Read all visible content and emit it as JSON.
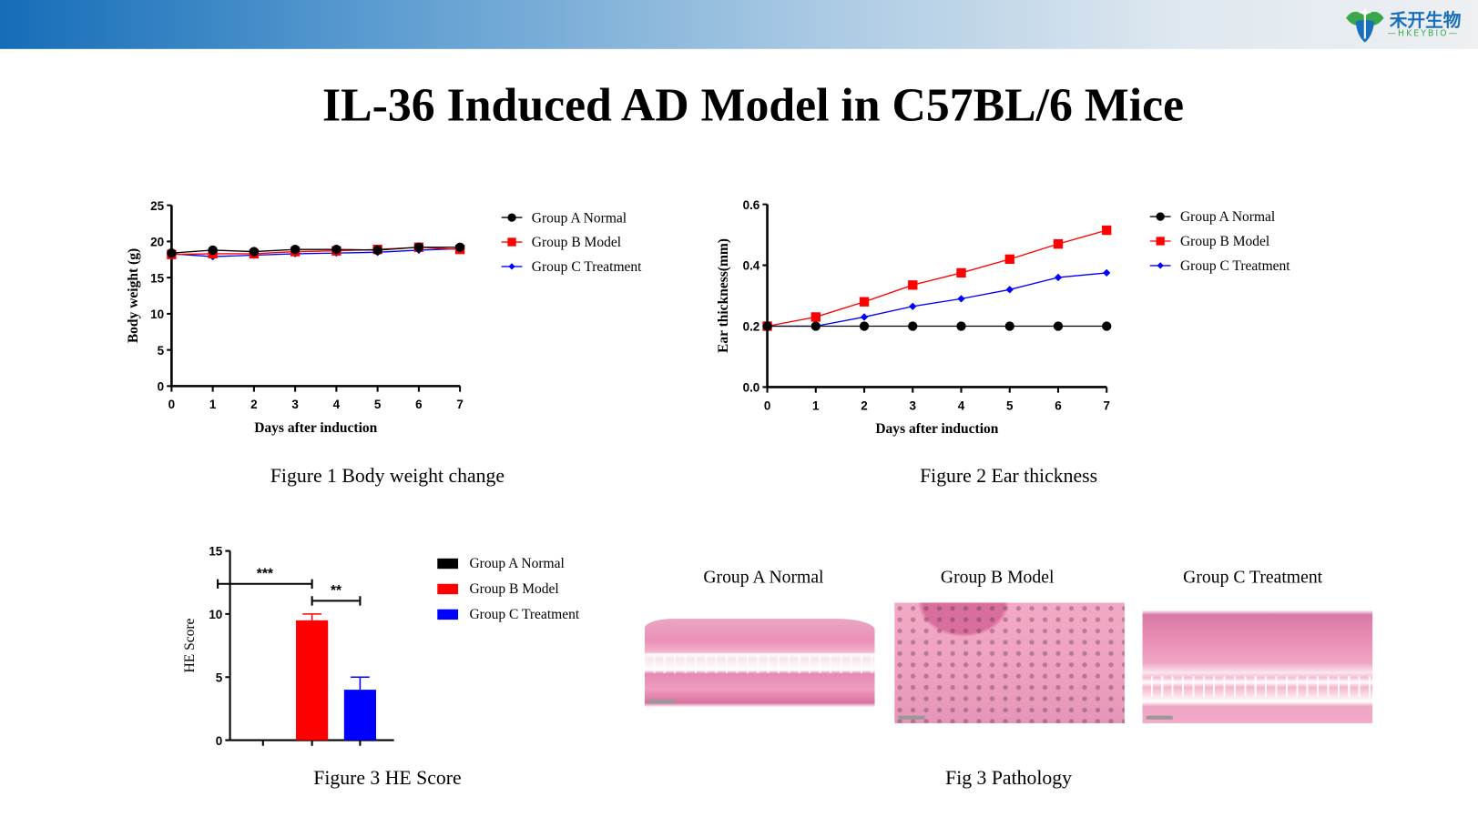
{
  "header": {
    "logo_cn": "禾开生物",
    "logo_en": "—HKEYBIO—",
    "brand_colors": {
      "blue": "#1a6fba",
      "green": "#3aa84a"
    }
  },
  "title": "IL-36 Induced AD Model in C57BL/6 Mice",
  "colors": {
    "group_a": "#000000",
    "group_b": "#ff0000",
    "group_c": "#0000ff"
  },
  "chart_data": [
    {
      "type": "line",
      "caption": "Figure 1 Body weight change",
      "xlabel": "Days after induction",
      "ylabel": "Body weight (g)",
      "x": [
        0,
        1,
        2,
        3,
        4,
        5,
        6,
        7
      ],
      "xlim": [
        0,
        7
      ],
      "ylim": [
        0,
        25
      ],
      "yticks": [
        0,
        5,
        10,
        15,
        20,
        25
      ],
      "legend": "right",
      "series": [
        {
          "name": "Group A Normal",
          "marker": "circle",
          "values": [
            18.4,
            18.8,
            18.6,
            18.9,
            18.9,
            18.8,
            19.2,
            19.2
          ]
        },
        {
          "name": "Group B Model",
          "marker": "square",
          "values": [
            18.2,
            18.3,
            18.3,
            18.6,
            18.7,
            18.9,
            19.2,
            18.9
          ]
        },
        {
          "name": "Group C Treatment",
          "marker": "diamond",
          "values": [
            18.3,
            17.9,
            18.1,
            18.3,
            18.4,
            18.5,
            18.8,
            19.0
          ]
        }
      ]
    },
    {
      "type": "line",
      "caption": "Figure 2 Ear thickness",
      "xlabel": "Days after induction",
      "ylabel": "Ear thickness(mm)",
      "x": [
        0,
        1,
        2,
        3,
        4,
        5,
        6,
        7
      ],
      "xlim": [
        0,
        7
      ],
      "ylim": [
        0,
        0.6
      ],
      "yticks": [
        "0.0",
        "0.2",
        "0.4",
        "0.6"
      ],
      "legend": "right",
      "series": [
        {
          "name": "Group A Normal",
          "marker": "circle",
          "values": [
            0.2,
            0.2,
            0.2,
            0.2,
            0.2,
            0.2,
            0.2,
            0.2
          ]
        },
        {
          "name": "Group B Model",
          "marker": "square",
          "values": [
            0.2,
            0.23,
            0.28,
            0.335,
            0.375,
            0.42,
            0.47,
            0.515
          ]
        },
        {
          "name": "Group C Treatment",
          "marker": "diamond",
          "values": [
            0.2,
            0.2,
            0.23,
            0.265,
            0.29,
            0.32,
            0.36,
            0.375
          ]
        }
      ]
    },
    {
      "type": "bar",
      "caption": "Figure 3 HE Score",
      "ylabel": "HE Score",
      "ylim": [
        0,
        15
      ],
      "yticks": [
        0,
        5,
        10,
        15
      ],
      "legend": "right",
      "categories": [
        "Group A Normal",
        "Group B Model",
        "Group C Treatment"
      ],
      "values": [
        0,
        9.5,
        4.0
      ],
      "errors": [
        0,
        0.5,
        1.0
      ],
      "significance": [
        {
          "from": 0,
          "to": 1,
          "label": "***"
        },
        {
          "from": 1,
          "to": 2,
          "label": "**"
        }
      ]
    }
  ],
  "pathology": {
    "caption": "Fig 3 Pathology",
    "panels": [
      {
        "label": "Group A Normal"
      },
      {
        "label": "Group B Model"
      },
      {
        "label": "Group C Treatment"
      }
    ]
  }
}
